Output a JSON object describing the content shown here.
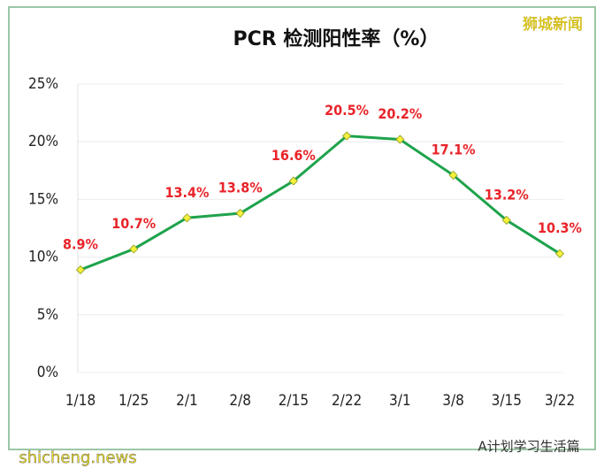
{
  "chart_data": {
    "type": "line",
    "title": "PCR 检测阳性率（%）",
    "categories": [
      "1/18",
      "1/25",
      "2/1",
      "2/8",
      "2/15",
      "2/22",
      "3/1",
      "3/8",
      "3/15",
      "3/22"
    ],
    "series": [
      {
        "name": "PCR 检测阳性率",
        "color": "#1ea34c",
        "values": [
          8.9,
          10.7,
          13.4,
          13.8,
          16.6,
          20.5,
          20.2,
          17.1,
          13.2,
          10.3
        ],
        "value_labels": [
          "8.9%",
          "10.7%",
          "13.4%",
          "13.8%",
          "16.6%",
          "20.5%",
          "20.2%",
          "17.1%",
          "13.2%",
          "10.3%"
        ]
      }
    ],
    "ylim": [
      0,
      25
    ],
    "yticks": [
      {
        "value": 0,
        "label": "0%"
      },
      {
        "value": 5,
        "label": "5%"
      },
      {
        "value": 10,
        "label": "10%"
      },
      {
        "value": 15,
        "label": "15%"
      },
      {
        "value": 20,
        "label": "20%"
      },
      {
        "value": 25,
        "label": "25%"
      }
    ],
    "grid": true
  },
  "watermarks": {
    "top_right": "狮城新闻",
    "bottom_left": "shicheng.news",
    "bottom_right": "A计划学习生活篇"
  }
}
